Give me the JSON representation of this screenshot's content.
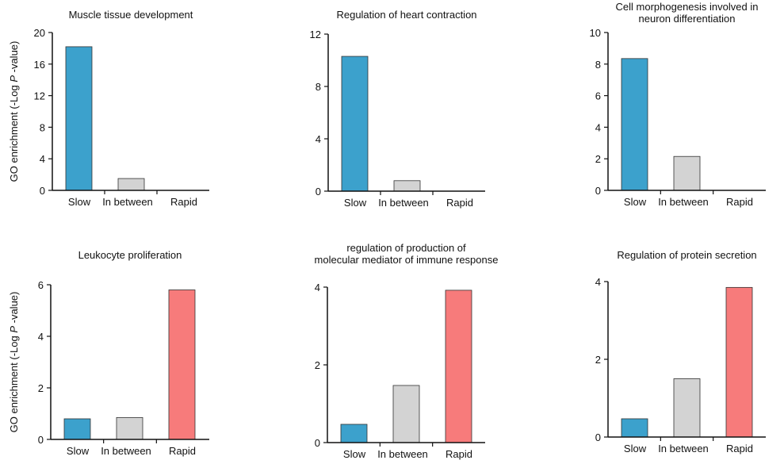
{
  "figure": {
    "ylabel_pre": "GO enrichment (-Log ",
    "ylabel_p": "P",
    "ylabel_post": " -value)"
  },
  "chart_data": [
    {
      "type": "bar",
      "title": [
        "Muscle tissue development"
      ],
      "categories": [
        "Slow",
        "In between",
        "Rapid"
      ],
      "values": [
        18.2,
        1.5,
        0
      ],
      "ylim": [
        0,
        20
      ],
      "yticks": [
        0,
        4,
        8,
        12,
        16,
        20
      ],
      "colors": [
        "#3ca1cc",
        "#d3d3d3",
        "#f77b7b"
      ],
      "show_ylabel": true
    },
    {
      "type": "bar",
      "title": [
        "Regulation of heart contraction"
      ],
      "categories": [
        "Slow",
        "In between",
        "Rapid"
      ],
      "values": [
        10.3,
        0.8,
        0
      ],
      "ylim": [
        0,
        12
      ],
      "yticks": [
        0,
        4,
        8,
        12
      ],
      "colors": [
        "#3ca1cc",
        "#d3d3d3",
        "#f77b7b"
      ],
      "show_ylabel": false
    },
    {
      "type": "bar",
      "title": [
        "Cell morphogenesis involved in",
        "neuron differentiation"
      ],
      "categories": [
        "Slow",
        "In between",
        "Rapid"
      ],
      "values": [
        8.35,
        2.15,
        0
      ],
      "ylim": [
        0,
        10
      ],
      "yticks": [
        0,
        2,
        4,
        6,
        8,
        10
      ],
      "colors": [
        "#3ca1cc",
        "#d3d3d3",
        "#f77b7b"
      ],
      "show_ylabel": false
    },
    {
      "type": "bar",
      "title": [
        "Leukocyte proliferation"
      ],
      "categories": [
        "Slow",
        "In between",
        "Rapid"
      ],
      "values": [
        0.8,
        0.85,
        5.8
      ],
      "ylim": [
        0,
        6
      ],
      "yticks": [
        0,
        2,
        4,
        6
      ],
      "colors": [
        "#3ca1cc",
        "#d3d3d3",
        "#f77b7b"
      ],
      "show_ylabel": true
    },
    {
      "type": "bar",
      "title": [
        "regulation of production of",
        "molecular mediator of immune response"
      ],
      "categories": [
        "Slow",
        "In between",
        "Rapid"
      ],
      "values": [
        0.47,
        1.47,
        3.92
      ],
      "ylim": [
        0,
        4
      ],
      "yticks": [
        0,
        2,
        4
      ],
      "colors": [
        "#3ca1cc",
        "#d3d3d3",
        "#f77b7b"
      ],
      "show_ylabel": false
    },
    {
      "type": "bar",
      "title": [
        "Regulation of protein secretion"
      ],
      "categories": [
        "Slow",
        "In between",
        "Rapid"
      ],
      "values": [
        0.47,
        1.5,
        3.85
      ],
      "ylim": [
        0,
        4
      ],
      "yticks": [
        0,
        2,
        4
      ],
      "colors": [
        "#3ca1cc",
        "#d3d3d3",
        "#f77b7b"
      ],
      "show_ylabel": false
    }
  ]
}
